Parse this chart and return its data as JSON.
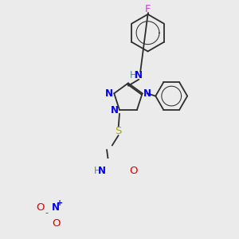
{
  "background_color": "#ebebeb",
  "figsize": [
    3.0,
    3.0
  ],
  "dpi": 100,
  "lw": 1.3,
  "colors": {
    "bond": "#2d2d2d",
    "N": "#0000ee",
    "O": "#dd0000",
    "S": "#aaaa00",
    "F": "#cc44cc",
    "NH": "#4a9090",
    "H": "#4a9090"
  }
}
